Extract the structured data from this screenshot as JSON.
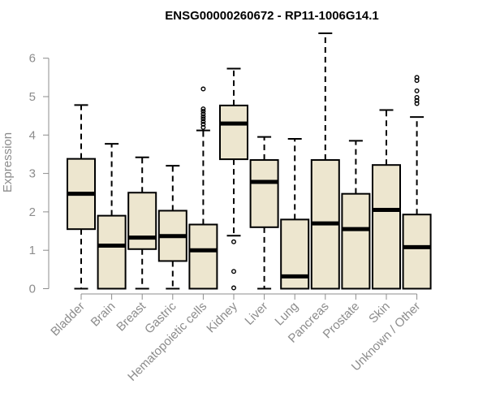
{
  "chart_data": {
    "type": "boxplot",
    "title": "ENSG00000260672 - RP11-1006G14.1",
    "xlabel": "",
    "ylabel": "Expression",
    "ylim": [
      0,
      6.6
    ],
    "yticks": [
      0,
      1,
      2,
      3,
      4,
      5,
      6
    ],
    "grid": false,
    "legend": "none",
    "box_fill": "#ede6cf",
    "box_stroke": "#000000",
    "categories": [
      "Bladder",
      "Brain",
      "Breast",
      "Gastric",
      "Hematopoietic cells",
      "Kidney",
      "Liver",
      "Lung",
      "Pancreas",
      "Prostate",
      "Skin",
      "Unknown / Other"
    ],
    "boxes": [
      {
        "category": "Bladder",
        "whisker_low": 0.0,
        "q1": 1.55,
        "median": 2.47,
        "q3": 3.38,
        "whisker_high": 4.78,
        "outliers": []
      },
      {
        "category": "Brain",
        "whisker_low": 0.0,
        "q1": 0.0,
        "median": 1.12,
        "q3": 1.9,
        "whisker_high": 3.77,
        "outliers": []
      },
      {
        "category": "Breast",
        "whisker_low": 0.0,
        "q1": 1.03,
        "median": 1.33,
        "q3": 2.5,
        "whisker_high": 3.42,
        "outliers": []
      },
      {
        "category": "Gastric",
        "whisker_low": 0.0,
        "q1": 0.72,
        "median": 1.37,
        "q3": 2.03,
        "whisker_high": 3.2,
        "outliers": []
      },
      {
        "category": "Hematopoietic cells",
        "whisker_low": 0.0,
        "q1": 0.0,
        "median": 1.0,
        "q3": 1.67,
        "whisker_high": 4.12,
        "outliers": [
          4.2,
          4.28,
          4.35,
          4.42,
          4.48,
          4.55,
          4.62,
          4.68,
          5.2
        ]
      },
      {
        "category": "Kidney",
        "whisker_low": 1.38,
        "q1": 3.37,
        "median": 4.3,
        "q3": 4.77,
        "whisker_high": 5.73,
        "outliers": [
          1.22,
          0.45,
          0.02
        ]
      },
      {
        "category": "Liver",
        "whisker_low": 0.0,
        "q1": 1.6,
        "median": 2.78,
        "q3": 3.35,
        "whisker_high": 3.95,
        "outliers": []
      },
      {
        "category": "Lung",
        "whisker_low": 0.0,
        "q1": 0.0,
        "median": 0.32,
        "q3": 1.8,
        "whisker_high": 3.9,
        "outliers": []
      },
      {
        "category": "Pancreas",
        "whisker_low": 0.0,
        "q1": 0.0,
        "median": 1.7,
        "q3": 3.35,
        "whisker_high": 6.65,
        "outliers": []
      },
      {
        "category": "Prostate",
        "whisker_low": 0.0,
        "q1": 0.0,
        "median": 1.55,
        "q3": 2.47,
        "whisker_high": 3.85,
        "outliers": []
      },
      {
        "category": "Skin",
        "whisker_low": 0.0,
        "q1": 0.0,
        "median": 2.05,
        "q3": 3.22,
        "whisker_high": 4.65,
        "outliers": []
      },
      {
        "category": "Unknown / Other",
        "whisker_low": 0.0,
        "q1": 0.0,
        "median": 1.08,
        "q3": 1.93,
        "whisker_high": 4.47,
        "outliers": [
          4.82,
          4.9,
          4.98,
          5.15,
          5.42,
          5.5
        ]
      }
    ]
  }
}
